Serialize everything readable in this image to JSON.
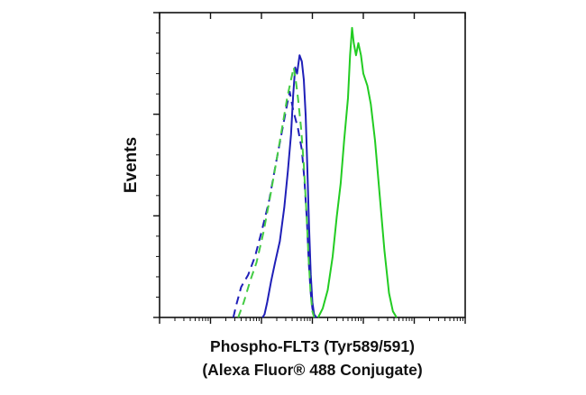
{
  "chart_data": {
    "type": "line",
    "title": "",
    "xlabel_lines": [
      "Phospho-FLT3 (Tyr589/591)",
      "(Alexa Fluor® 488 Conjugate)"
    ],
    "ylabel": "Events",
    "x_scale": "log",
    "xlim": [
      1,
      1000000
    ],
    "ylim": [
      0,
      100
    ],
    "grid": false,
    "legend": "none",
    "series": [
      {
        "color": "#1f1fb8",
        "dash": "solid",
        "points": [
          [
            105,
            0
          ],
          [
            115,
            1
          ],
          [
            130,
            5
          ],
          [
            155,
            12
          ],
          [
            185,
            18
          ],
          [
            230,
            25
          ],
          [
            280,
            36
          ],
          [
            330,
            48
          ],
          [
            380,
            60
          ],
          [
            420,
            73
          ],
          [
            460,
            82
          ],
          [
            500,
            80
          ],
          [
            560,
            86
          ],
          [
            620,
            84
          ],
          [
            680,
            78
          ],
          [
            740,
            66
          ],
          [
            800,
            48
          ],
          [
            860,
            30
          ],
          [
            930,
            14
          ],
          [
            1000,
            5
          ],
          [
            1080,
            1
          ],
          [
            1200,
            0
          ]
        ]
      },
      {
        "color": "#22cc22",
        "dash": "solid",
        "points": [
          [
            1300,
            0
          ],
          [
            1600,
            3
          ],
          [
            2000,
            9
          ],
          [
            2500,
            20
          ],
          [
            3000,
            33
          ],
          [
            3600,
            44
          ],
          [
            4200,
            58
          ],
          [
            5000,
            72
          ],
          [
            5500,
            86
          ],
          [
            6000,
            95
          ],
          [
            6500,
            90
          ],
          [
            7200,
            86
          ],
          [
            8000,
            90
          ],
          [
            9000,
            86
          ],
          [
            10000,
            80
          ],
          [
            12000,
            76
          ],
          [
            14000,
            70
          ],
          [
            17000,
            58
          ],
          [
            21000,
            40
          ],
          [
            26000,
            22
          ],
          [
            32000,
            8
          ],
          [
            38000,
            2
          ],
          [
            45000,
            0
          ]
        ]
      },
      {
        "color": "#1f1fb8",
        "dash": "dashed",
        "points": [
          [
            28,
            0
          ],
          [
            32,
            4
          ],
          [
            40,
            10
          ],
          [
            55,
            14
          ],
          [
            75,
            20
          ],
          [
            100,
            28
          ],
          [
            140,
            38
          ],
          [
            190,
            50
          ],
          [
            260,
            62
          ],
          [
            320,
            70
          ],
          [
            360,
            74
          ],
          [
            420,
            68
          ],
          [
            520,
            62
          ],
          [
            620,
            55
          ],
          [
            700,
            45
          ],
          [
            780,
            32
          ],
          [
            850,
            18
          ],
          [
            930,
            8
          ],
          [
            1000,
            3
          ],
          [
            1100,
            0
          ]
        ]
      },
      {
        "color": "#44cc44",
        "dash": "dashed",
        "points": [
          [
            35,
            0
          ],
          [
            45,
            5
          ],
          [
            60,
            12
          ],
          [
            80,
            18
          ],
          [
            110,
            28
          ],
          [
            150,
            40
          ],
          [
            200,
            52
          ],
          [
            260,
            63
          ],
          [
            320,
            72
          ],
          [
            380,
            78
          ],
          [
            430,
            82
          ],
          [
            470,
            78
          ],
          [
            520,
            72
          ],
          [
            600,
            62
          ],
          [
            680,
            50
          ],
          [
            760,
            35
          ],
          [
            840,
            20
          ],
          [
            920,
            8
          ],
          [
            1000,
            2
          ],
          [
            1080,
            0
          ]
        ]
      }
    ]
  }
}
